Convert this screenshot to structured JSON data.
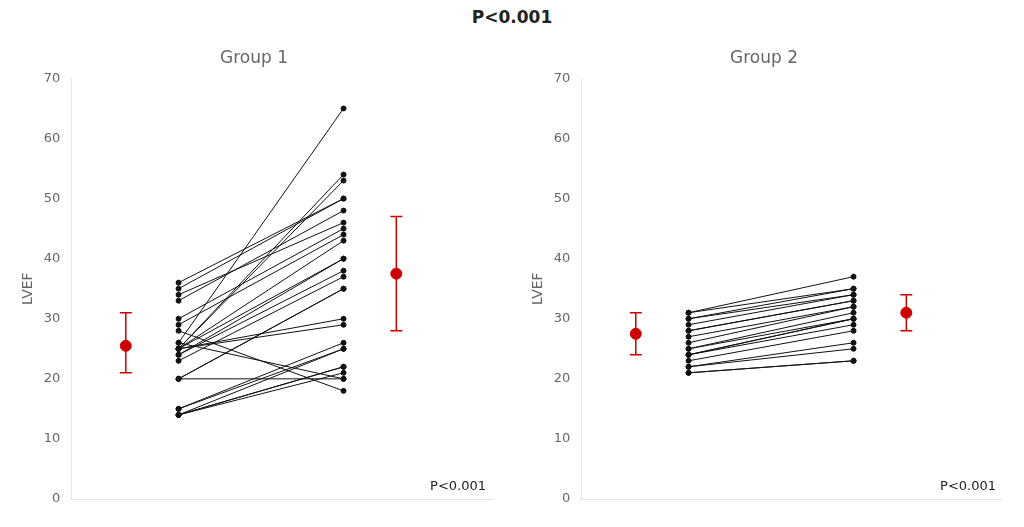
{
  "title": "P<0.001",
  "chart_data": [
    {
      "type": "line",
      "title": "Group 1",
      "y_label": "LVEF",
      "annotation": "P<0.001",
      "pre": [
        26,
        25,
        25,
        36,
        35,
        33,
        34,
        30,
        29,
        25,
        25,
        24,
        24,
        23,
        20,
        20,
        25,
        25,
        15,
        15,
        14,
        14,
        14,
        14,
        20,
        26,
        28
      ],
      "post": [
        65,
        54,
        53,
        50,
        50,
        48,
        46,
        45,
        44,
        43,
        40,
        40,
        38,
        37,
        35,
        35,
        30,
        29,
        26,
        25,
        25,
        22,
        22,
        21,
        20,
        20,
        18
      ],
      "color": "#111111",
      "marker": "circle",
      "error_bars": {
        "color": "#cc0000",
        "pre": {
          "value": 25.5,
          "high": 31,
          "low": 21
        },
        "post": {
          "value": 37.5,
          "high": 47,
          "low": 28
        }
      },
      "ylim": [
        0,
        70
      ],
      "yticks": [
        0,
        10,
        20,
        30,
        40,
        50,
        60,
        70
      ],
      "grid": false,
      "tick_labels": "y"
    },
    {
      "type": "line",
      "title": "Group 2",
      "y_label": "LVEF",
      "annotation": "P<0.001",
      "pre": [
        31,
        31,
        30,
        30,
        29,
        28,
        28,
        27,
        26,
        25,
        25,
        24,
        24,
        24,
        23,
        22,
        22,
        21,
        21
      ],
      "post": [
        37,
        35,
        35,
        34,
        34,
        33,
        33,
        32,
        32,
        31,
        30,
        30,
        30,
        29,
        28,
        26,
        25,
        23,
        23
      ],
      "color": "#111111",
      "marker": "circle",
      "error_bars": {
        "color": "#cc0000",
        "pre": {
          "value": 27.5,
          "high": 31,
          "low": 24
        },
        "post": {
          "value": 31,
          "high": 34,
          "low": 28
        }
      },
      "ylim": [
        0,
        70
      ],
      "yticks": [
        0,
        10,
        20,
        30,
        40,
        50,
        60,
        70
      ],
      "grid": false,
      "tick_labels": "y"
    }
  ]
}
